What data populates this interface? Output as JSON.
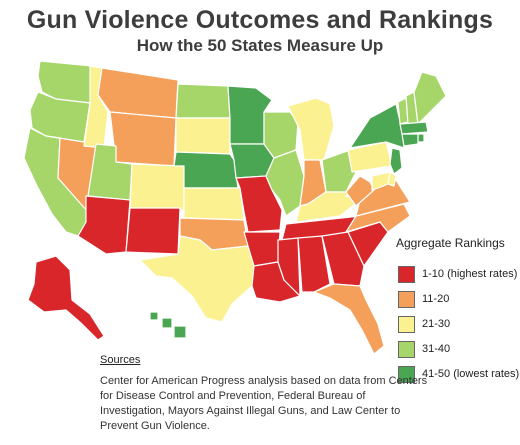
{
  "title": "Gun Violence Outcomes and Rankings",
  "subtitle": "How the 50 States Measure Up",
  "legend": {
    "title": "Aggregate Rankings",
    "items": [
      {
        "label": "1-10 (highest rates)",
        "color": "#d9262b"
      },
      {
        "label": "11-20",
        "color": "#f5a05a"
      },
      {
        "label": "21-30",
        "color": "#fbf190"
      },
      {
        "label": "31-40",
        "color": "#a6d66a"
      },
      {
        "label": "41-50 (lowest rates)",
        "color": "#4aa653"
      }
    ]
  },
  "sources": {
    "heading": "Sources",
    "text": "Center for American Progress analysis based on data from Centers for Disease Control and Prevention, Federal Bureau of Investigation, Mayors Against Illegal Guns, and Law Center to Prevent Gun Violence."
  },
  "states": {
    "WA": "31-40",
    "OR": "31-40",
    "CA": "31-40",
    "NV": "11-20",
    "ID": "21-30",
    "MT": "11-20",
    "WY": "11-20",
    "UT": "31-40",
    "AZ": "1-10",
    "CO": "21-30",
    "NM": "1-10",
    "ND": "31-40",
    "SD": "21-30",
    "NE": "41-50",
    "KS": "21-30",
    "OK": "11-20",
    "TX": "21-30",
    "MN": "41-50",
    "IA": "41-50",
    "MO": "1-10",
    "AR": "1-10",
    "LA": "1-10",
    "WI": "31-40",
    "IL": "31-40",
    "MI": "21-30",
    "IN": "11-20",
    "OH": "31-40",
    "KY": "21-30",
    "TN": "1-10",
    "MS": "1-10",
    "AL": "1-10",
    "GA": "1-10",
    "FL": "11-20",
    "SC": "1-10",
    "NC": "11-20",
    "VA": "11-20",
    "WV": "11-20",
    "PA": "21-30",
    "NY": "41-50",
    "VT": "31-40",
    "NH": "31-40",
    "ME": "31-40",
    "MA": "41-50",
    "RI": "41-50",
    "CT": "41-50",
    "NJ": "41-50",
    "DE": "21-30",
    "MD": "21-30",
    "AK": "1-10",
    "HI": "41-50"
  }
}
